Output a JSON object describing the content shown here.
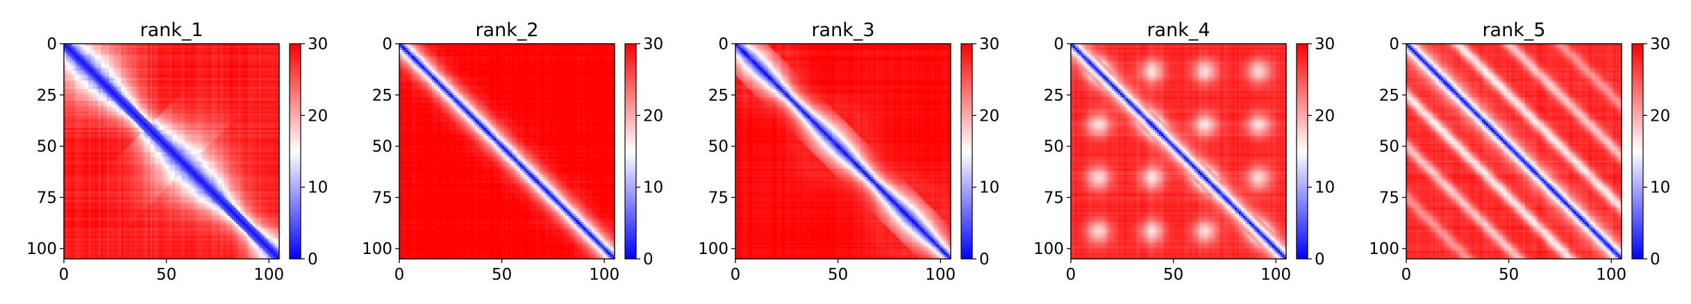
{
  "figure": {
    "type": "heatmap",
    "colormap": "bwr",
    "colormap_colors": {
      "low": "#0000ff",
      "mid": "#ffffff",
      "high": "#ff0000"
    },
    "colorbar": {
      "range": [
        0,
        30
      ],
      "ticks": [
        "0",
        "10",
        "20",
        "30"
      ]
    }
  },
  "chart_data": [
    {
      "type": "heatmap",
      "title": "rank_1",
      "xlim": [
        0,
        105
      ],
      "ylim": [
        105,
        0
      ],
      "xticks": [
        "0",
        "50",
        "100"
      ],
      "yticks": [
        "0",
        "25",
        "50",
        "75",
        "100"
      ],
      "matrix_size": 105,
      "value_range": [
        0,
        30
      ],
      "colorbar_ticks": [
        "0",
        "10",
        "20",
        "30"
      ],
      "diagonal_band": "blue (distance ~0-10) along the main diagonal, wide and irregular with blobs near 20, 50, 75 and 100",
      "off_diagonal": "mostly red (~25-30) with faint lighter grid lines"
    },
    {
      "type": "heatmap",
      "title": "rank_2",
      "xlim": [
        0,
        105
      ],
      "ylim": [
        105,
        0
      ],
      "xticks": [
        "0",
        "50",
        "100"
      ],
      "yticks": [
        "0",
        "25",
        "50",
        "75",
        "100"
      ],
      "matrix_size": 105,
      "value_range": [
        0,
        30
      ],
      "colorbar_ticks": [
        "0",
        "10",
        "20",
        "30"
      ],
      "diagonal_band": "narrow blue band along the main diagonal",
      "off_diagonal": "almost uniformly saturated red (~30)"
    },
    {
      "type": "heatmap",
      "title": "rank_3",
      "xlim": [
        0,
        105
      ],
      "ylim": [
        105,
        0
      ],
      "xticks": [
        "0",
        "50",
        "100"
      ],
      "yticks": [
        "0",
        "25",
        "50",
        "75",
        "100"
      ],
      "matrix_size": 105,
      "value_range": [
        0,
        30
      ],
      "colorbar_ticks": [
        "0",
        "10",
        "20",
        "30"
      ],
      "diagonal_band": "medium-width blue band with small blobs along the diagonal",
      "off_diagonal": "mostly saturated red (~28-30)"
    },
    {
      "type": "heatmap",
      "title": "rank_4",
      "xlim": [
        0,
        105
      ],
      "ylim": [
        105,
        0
      ],
      "xticks": [
        "0",
        "50",
        "100"
      ],
      "yticks": [
        "0",
        "25",
        "50",
        "75",
        "100"
      ],
      "matrix_size": 105,
      "value_range": [
        0,
        30
      ],
      "colorbar_ticks": [
        "0",
        "10",
        "20",
        "30"
      ],
      "diagonal_band": "narrow blue band along the main diagonal",
      "off_diagonal": "red (~22-28) with whitish (~15-20) lattice of off-diagonal patches"
    },
    {
      "type": "heatmap",
      "title": "rank_5",
      "xlim": [
        0,
        105
      ],
      "ylim": [
        105,
        0
      ],
      "xticks": [
        "0",
        "50",
        "100"
      ],
      "yticks": [
        "0",
        "25",
        "50",
        "75",
        "100"
      ],
      "matrix_size": 105,
      "value_range": [
        0,
        30
      ],
      "colorbar_ticks": [
        "0",
        "10",
        "20",
        "30"
      ],
      "diagonal_band": "narrow blue band along the main diagonal",
      "off_diagonal": "red with several parallel light/whitish bands parallel to the diagonal (offsets ~25 and ~50)"
    }
  ]
}
